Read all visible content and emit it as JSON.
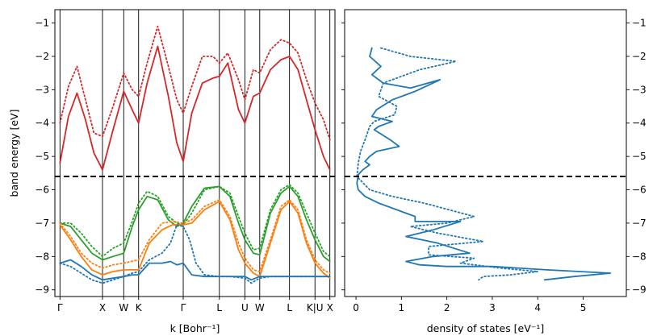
{
  "chart_data": [
    {
      "type": "line",
      "title": "",
      "xlabel": "k [Bohr⁻¹]",
      "ylabel": "band energy [eV]",
      "ylim": [
        -9.2,
        -0.6
      ],
      "yticks": [
        -9,
        -8,
        -7,
        -6,
        -5,
        -4,
        -3,
        -2,
        -1
      ],
      "high_symmetry_points": [
        {
          "label": "Γ",
          "x": 0.0
        },
        {
          "label": "X",
          "x": 1.0
        },
        {
          "label": "W",
          "x": 1.5
        },
        {
          "label": "K",
          "x": 1.85
        },
        {
          "label": "Γ",
          "x": 2.9
        },
        {
          "label": "L",
          "x": 3.75
        },
        {
          "label": "U",
          "x": 4.35
        },
        {
          "label": "W",
          "x": 4.7
        },
        {
          "label": "L",
          "x": 5.4
        },
        {
          "label": "K|U",
          "x": 6.0
        },
        {
          "label": "X",
          "x": 6.35
        }
      ],
      "fermi_level": -5.6,
      "series": [
        {
          "band": "conduction",
          "style": "solid",
          "color": "#d62728",
          "x": [
            0,
            0.2,
            0.4,
            0.6,
            0.8,
            1.0,
            1.25,
            1.5,
            1.7,
            1.85,
            2.05,
            2.3,
            2.55,
            2.75,
            2.9,
            3.1,
            3.35,
            3.6,
            3.75,
            3.95,
            4.2,
            4.35,
            4.55,
            4.7,
            4.95,
            5.2,
            5.4,
            5.6,
            5.8,
            6.0,
            6.2,
            6.35
          ],
          "y": [
            -5.2,
            -3.8,
            -3.1,
            -3.9,
            -4.9,
            -5.4,
            -4.2,
            -3.05,
            -3.6,
            -4.0,
            -2.8,
            -1.7,
            -3.2,
            -4.6,
            -5.15,
            -3.7,
            -2.8,
            -2.65,
            -2.6,
            -2.2,
            -3.6,
            -4.0,
            -3.2,
            -3.1,
            -2.4,
            -2.1,
            -2.0,
            -2.4,
            -3.3,
            -4.2,
            -5.0,
            -5.4
          ]
        },
        {
          "band": "conduction",
          "style": "dotted",
          "color": "#d62728",
          "x": [
            0,
            0.2,
            0.4,
            0.6,
            0.8,
            1.0,
            1.25,
            1.5,
            1.7,
            1.85,
            2.05,
            2.3,
            2.55,
            2.75,
            2.9,
            3.1,
            3.35,
            3.6,
            3.75,
            3.95,
            4.2,
            4.35,
            4.55,
            4.7,
            4.95,
            5.2,
            5.4,
            5.6,
            5.8,
            6.0,
            6.2,
            6.35
          ],
          "y": [
            -4.0,
            -2.9,
            -2.3,
            -3.3,
            -4.3,
            -4.4,
            -3.5,
            -2.5,
            -3.0,
            -3.2,
            -2.2,
            -1.1,
            -2.3,
            -3.3,
            -3.7,
            -2.9,
            -2.0,
            -2.0,
            -2.2,
            -1.9,
            -2.7,
            -3.3,
            -2.4,
            -2.5,
            -1.8,
            -1.5,
            -1.6,
            -1.9,
            -2.7,
            -3.4,
            -3.9,
            -4.5
          ]
        },
        {
          "band": "valence",
          "style": "solid",
          "color": "#2ca02c",
          "x": [
            0,
            0.25,
            0.5,
            0.75,
            1.0,
            1.25,
            1.5,
            1.7,
            1.85,
            2.05,
            2.3,
            2.55,
            2.75,
            2.9,
            3.1,
            3.4,
            3.75,
            4.0,
            4.2,
            4.35,
            4.55,
            4.7,
            4.95,
            5.2,
            5.4,
            5.6,
            5.8,
            6.0,
            6.2,
            6.35
          ],
          "y": [
            -7.0,
            -7.1,
            -7.5,
            -7.9,
            -8.1,
            -8.0,
            -7.9,
            -7.1,
            -6.6,
            -6.2,
            -6.3,
            -6.9,
            -7.1,
            -7.0,
            -6.5,
            -5.95,
            -5.9,
            -6.2,
            -7.0,
            -7.5,
            -7.9,
            -7.95,
            -6.7,
            -6.1,
            -5.9,
            -6.2,
            -6.9,
            -7.5,
            -8.0,
            -8.15
          ]
        },
        {
          "band": "valence",
          "style": "dotted",
          "color": "#2ca02c",
          "x": [
            0,
            0.25,
            0.5,
            0.75,
            1.0,
            1.25,
            1.5,
            1.7,
            1.85,
            2.05,
            2.3,
            2.55,
            2.75,
            2.9,
            3.1,
            3.4,
            3.75,
            4.0,
            4.2,
            4.35,
            4.55,
            4.7,
            4.95,
            5.2,
            5.4,
            5.6,
            5.8,
            6.0,
            6.2,
            6.35
          ],
          "y": [
            -7.0,
            -7.0,
            -7.3,
            -7.7,
            -8.0,
            -7.75,
            -7.6,
            -6.95,
            -6.4,
            -6.05,
            -6.2,
            -6.8,
            -7.0,
            -7.05,
            -6.7,
            -6.0,
            -5.9,
            -6.1,
            -6.8,
            -7.3,
            -7.8,
            -7.75,
            -6.6,
            -6.0,
            -5.85,
            -6.1,
            -6.7,
            -7.3,
            -7.85,
            -8.0
          ]
        },
        {
          "band": "valence",
          "style": "solid",
          "color": "#ff7f0e",
          "x": [
            0,
            0.25,
            0.5,
            0.75,
            1.0,
            1.25,
            1.5,
            1.85,
            2.1,
            2.4,
            2.65,
            2.9,
            3.1,
            3.4,
            3.75,
            4.0,
            4.2,
            4.35,
            4.55,
            4.7,
            4.95,
            5.2,
            5.4,
            5.6,
            5.8,
            6.0,
            6.2,
            6.35
          ],
          "y": [
            -7.05,
            -7.5,
            -8.0,
            -8.4,
            -8.55,
            -8.45,
            -8.4,
            -8.4,
            -7.6,
            -7.2,
            -7.05,
            -7.05,
            -7.0,
            -6.6,
            -6.35,
            -6.9,
            -7.8,
            -8.2,
            -8.5,
            -8.6,
            -7.6,
            -6.6,
            -6.35,
            -6.7,
            -7.6,
            -8.2,
            -8.5,
            -8.65
          ]
        },
        {
          "band": "valence",
          "style": "dotted",
          "color": "#ff7f0e",
          "x": [
            0,
            0.25,
            0.5,
            0.75,
            1.0,
            1.25,
            1.5,
            1.85,
            2.1,
            2.4,
            2.65,
            2.9,
            3.1,
            3.4,
            3.75,
            4.0,
            4.2,
            4.35,
            4.55,
            4.7,
            4.95,
            5.2,
            5.4,
            5.6,
            5.8,
            6.0,
            6.2,
            6.35
          ],
          "y": [
            -7.0,
            -7.4,
            -7.9,
            -8.2,
            -8.35,
            -8.25,
            -8.2,
            -8.1,
            -7.5,
            -7.0,
            -6.95,
            -7.0,
            -6.9,
            -6.5,
            -6.3,
            -6.8,
            -7.6,
            -8.05,
            -8.4,
            -8.45,
            -7.5,
            -6.5,
            -6.3,
            -6.6,
            -7.5,
            -8.1,
            -8.4,
            -8.5
          ]
        },
        {
          "band": "valence",
          "style": "solid",
          "color": "#1f77b4",
          "x": [
            0,
            0.25,
            0.5,
            0.75,
            1.0,
            1.25,
            1.5,
            1.7,
            1.85,
            2.1,
            2.4,
            2.6,
            2.75,
            2.9,
            3.1,
            3.4,
            3.75,
            4.0,
            4.2,
            4.35,
            4.5,
            4.7,
            4.95,
            5.2,
            5.4,
            5.6,
            5.8,
            6.0,
            6.2,
            6.35
          ],
          "y": [
            -8.2,
            -8.1,
            -8.3,
            -8.55,
            -8.7,
            -8.65,
            -8.6,
            -8.55,
            -8.55,
            -8.2,
            -8.2,
            -8.15,
            -8.25,
            -8.2,
            -8.55,
            -8.6,
            -8.6,
            -8.6,
            -8.6,
            -8.6,
            -8.7,
            -8.6,
            -8.6,
            -8.6,
            -8.6,
            -8.6,
            -8.6,
            -8.6,
            -8.6,
            -8.6
          ]
        },
        {
          "band": "valence",
          "style": "dotted",
          "color": "#1f77b4",
          "x": [
            0,
            0.25,
            0.5,
            0.75,
            1.0,
            1.25,
            1.5,
            1.7,
            1.85,
            2.1,
            2.4,
            2.6,
            2.75,
            2.9,
            3.05,
            3.2,
            3.4,
            3.75,
            4.0,
            4.35,
            4.5,
            4.7,
            4.95,
            5.2,
            5.4,
            5.6,
            5.8,
            6.0,
            6.2,
            6.35
          ],
          "y": [
            -8.2,
            -8.3,
            -8.5,
            -8.7,
            -8.8,
            -8.7,
            -8.6,
            -8.5,
            -8.45,
            -8.1,
            -7.9,
            -7.6,
            -7.05,
            -7.1,
            -7.5,
            -8.2,
            -8.55,
            -8.6,
            -8.6,
            -8.65,
            -8.8,
            -8.65,
            -8.6,
            -8.6,
            -8.6,
            -8.6,
            -8.6,
            -8.6,
            -8.6,
            -8.6
          ]
        }
      ]
    },
    {
      "type": "line",
      "title": "",
      "xlabel": "density of states [eV⁻¹]",
      "ylabel": "",
      "xlim": [
        -0.25,
        5.95
      ],
      "ylim": [
        -9.2,
        -0.6
      ],
      "xticks": [
        0,
        1,
        2,
        3,
        4,
        5
      ],
      "yticks": [
        -9,
        -8,
        -7,
        -6,
        -5,
        -4,
        -3,
        -2,
        -1
      ],
      "yaxis_position": "right",
      "fermi_level": -5.6,
      "series": [
        {
          "style": "solid",
          "color": "#1f77b4",
          "x": [
            0.35,
            0.3,
            0.55,
            0.35,
            0.6,
            1.2,
            1.85,
            1.3,
            0.8,
            0.45,
            0.35,
            0.8,
            0.5,
            0.4,
            0.75,
            0.95,
            0.45,
            0.3,
            0.2,
            0.3,
            0.15,
            0.05,
            0.02,
            0.05,
            0.2,
            0.5,
            0.9,
            1.3,
            1.3,
            2.3,
            1.7,
            1.1,
            1.8,
            2.5,
            1.7,
            1.1,
            1.4,
            2.0,
            3.0,
            4.2,
            5.6,
            4.8,
            4.15
          ],
          "y": [
            -1.75,
            -2.0,
            -2.3,
            -2.55,
            -2.8,
            -2.95,
            -2.7,
            -3.05,
            -3.3,
            -3.6,
            -3.8,
            -3.95,
            -4.1,
            -4.2,
            -4.5,
            -4.7,
            -4.85,
            -5.0,
            -5.15,
            -5.25,
            -5.4,
            -5.55,
            -5.8,
            -6.0,
            -6.2,
            -6.4,
            -6.6,
            -6.8,
            -6.95,
            -6.95,
            -7.2,
            -7.4,
            -7.6,
            -7.9,
            -8.0,
            -8.15,
            -8.25,
            -8.3,
            -8.3,
            -8.4,
            -8.5,
            -8.6,
            -8.7
          ]
        },
        {
          "style": "dotted",
          "color": "#1f77b4",
          "x": [
            0.55,
            1.2,
            2.2,
            1.4,
            0.6,
            0.5,
            0.9,
            0.85,
            0.4,
            0.3,
            0.25,
            0.2,
            0.1,
            0.05,
            0.02,
            0.3,
            0.8,
            1.5,
            2.6,
            2.0,
            1.2,
            1.8,
            2.8,
            1.6,
            1.6,
            2.6,
            2.3,
            3.2,
            4.0,
            3.4,
            2.8,
            2.7
          ],
          "y": [
            -1.75,
            -2.0,
            -2.15,
            -2.4,
            -2.8,
            -3.2,
            -3.5,
            -3.75,
            -3.95,
            -4.1,
            -4.3,
            -4.5,
            -4.85,
            -5.2,
            -5.6,
            -6.0,
            -6.2,
            -6.4,
            -6.8,
            -7.0,
            -7.1,
            -7.3,
            -7.55,
            -7.7,
            -7.95,
            -8.05,
            -8.2,
            -8.35,
            -8.45,
            -8.55,
            -8.6,
            -8.7
          ]
        }
      ]
    }
  ]
}
